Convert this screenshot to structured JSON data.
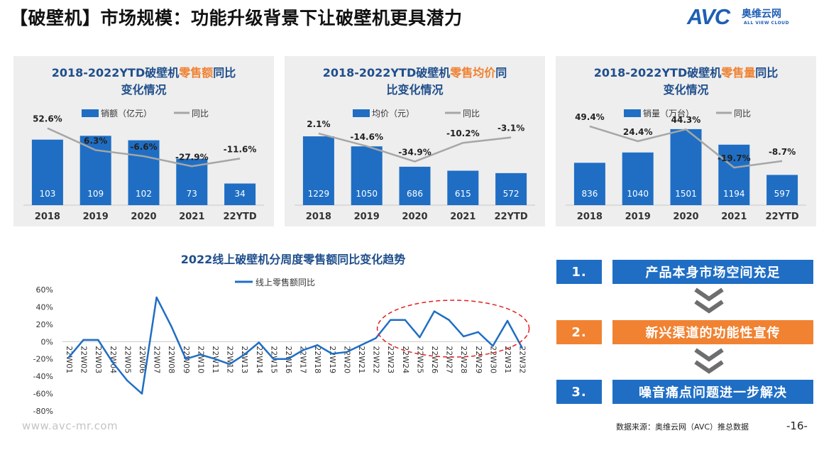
{
  "page_title": "【破壁机】市场规模：功能升级背景下让破壁机更具潜力",
  "logo": {
    "brand": "AVC",
    "cn": "奥维云网",
    "en": "ALL VIEW CLOUD"
  },
  "colors": {
    "bar": "#1f6ec4",
    "line": "#a6a6a6",
    "accent": "#f08232",
    "panel_bg": "#eeeeee",
    "trend_line": "#1f6ec4",
    "ellipse": "#e02020"
  },
  "chart_data": [
    {
      "type": "bar",
      "title_line1_prefix": "2018-2022YTD",
      "title_line1_mid": "破壁机",
      "title_line1_highlight": "零售额",
      "title_line1_suffix": "同比",
      "title_line2": "变化情况",
      "legend_bar": "销额（亿元）",
      "legend_line": "同比",
      "categories": [
        "2018",
        "2019",
        "2020",
        "2021",
        "22YTD"
      ],
      "values": [
        103,
        109,
        102,
        73,
        34
      ],
      "value_labels": [
        "103",
        "109",
        "102",
        "73",
        "34"
      ],
      "yoy": [
        52.6,
        6.3,
        -6.6,
        -27.9,
        -11.6
      ],
      "yoy_labels": [
        "52.6%",
        "6.3%",
        "-6.6%",
        "-27.9%",
        "-11.6%"
      ],
      "bar_max": 125,
      "line_range": [
        -50,
        70
      ]
    },
    {
      "type": "bar",
      "title_line1_prefix": "2018-2022YTD",
      "title_line1_mid": "破壁机",
      "title_line1_highlight": "零售均价",
      "title_line1_suffix": "同",
      "title_line2": "比变化情况",
      "legend_bar": "均价（元）",
      "legend_line": "同比",
      "categories": [
        "2018",
        "2019",
        "2020",
        "2021",
        "22YTD"
      ],
      "values": [
        1229,
        1050,
        686,
        615,
        572
      ],
      "value_labels": [
        "1229",
        "1050",
        "686",
        "615",
        "572"
      ],
      "yoy": [
        2.1,
        -14.6,
        -34.9,
        -10.2,
        -3.1
      ],
      "yoy_labels": [
        "2.1%",
        "-14.6%",
        "-34.9%",
        "-10.2%",
        "-3.1%"
      ],
      "bar_max": 1420,
      "line_range": [
        -55,
        20
      ]
    },
    {
      "type": "bar",
      "title_line1_prefix": "2018-2022YTD",
      "title_line1_mid": "破壁机",
      "title_line1_highlight": "零售量",
      "title_line1_suffix": "同比",
      "title_line2": "变化情况",
      "legend_bar": "销量（万台）",
      "legend_line": "同比",
      "categories": [
        "2018",
        "2019",
        "2020",
        "2021",
        "22YTD"
      ],
      "values": [
        836,
        1040,
        1501,
        1194,
        597
      ],
      "value_labels": [
        "836",
        "1040",
        "1501",
        "1194",
        "597"
      ],
      "yoy": [
        49.4,
        24.4,
        44.3,
        -19.7,
        -8.7
      ],
      "yoy_labels": [
        "49.4%",
        "24.4%",
        "44.3%",
        "-19.7%",
        "-8.7%"
      ],
      "bar_max": 1570,
      "line_range": [
        -35,
        60
      ]
    },
    {
      "type": "line",
      "title": "2022线上破壁机分周度零售额同比变化趋势",
      "legend": "线上零售额同比",
      "x": [
        "22W01",
        "22W02",
        "22W03",
        "22W04",
        "22W05",
        "22W06",
        "22W07",
        "22W08",
        "22W09",
        "22W10",
        "22W11",
        "22W12",
        "22W13",
        "22W14",
        "22W15",
        "22W16",
        "22W17",
        "22W18",
        "22W19",
        "22W20",
        "22W21",
        "22W22",
        "22W23",
        "22W24",
        "22W25",
        "22W26",
        "22W27",
        "22W28",
        "22W29",
        "22W30",
        "22W31",
        "22W32"
      ],
      "y": [
        -18,
        2,
        2,
        -24,
        -45,
        -60,
        51,
        18,
        -20,
        -15,
        -20,
        -26,
        -15,
        -1,
        -20,
        -20,
        -10,
        -4,
        -14,
        -12,
        -4,
        4,
        25,
        25,
        5,
        35,
        25,
        6,
        11,
        -5,
        24,
        -7
      ],
      "y_ticks": [
        "60%",
        "40%",
        "20%",
        "0%",
        "-20%",
        "-40%",
        "-60%",
        "-80%"
      ],
      "ylim": [
        -80,
        60
      ],
      "annotation": "dashed red ellipse highlighting 22W22-22W32"
    }
  ],
  "steps": [
    {
      "num": "1.",
      "label": "产品本身市场空间充足",
      "color": "blue"
    },
    {
      "num": "2.",
      "label": "新兴渠道的功能性宣传",
      "color": "orange"
    },
    {
      "num": "3.",
      "label": "噪音痛点问题进一步解决",
      "color": "blue"
    }
  ],
  "footer": {
    "website": "www.avc-mr.com",
    "source": "数据来源：奥维云网（AVC）推总数据",
    "page": "-16-"
  }
}
